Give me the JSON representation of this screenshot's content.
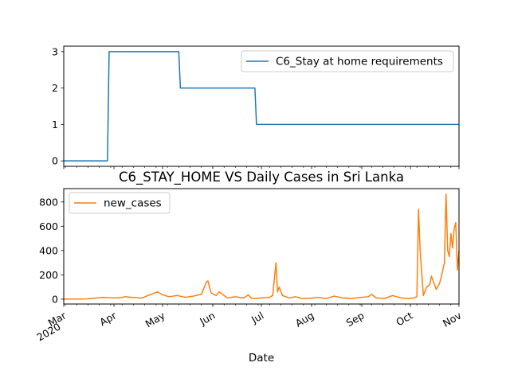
{
  "chart_data": [
    {
      "type": "line",
      "title": "",
      "xlabel": "",
      "ylabel": "",
      "ylim": [
        -0.15,
        3.15
      ],
      "yticks": [
        0,
        1,
        2,
        3
      ],
      "legend_placement": "top-right",
      "series": [
        {
          "name": "C6_Stay at home requirements",
          "color": "#1f77b4",
          "points": [
            [
              "2020-03-01",
              0
            ],
            [
              "2020-03-28",
              0
            ],
            [
              "2020-03-29",
              3
            ],
            [
              "2020-05-11",
              3
            ],
            [
              "2020-05-12",
              2
            ],
            [
              "2020-06-27",
              2
            ],
            [
              "2020-06-28",
              1
            ],
            [
              "2020-10-31",
              1
            ]
          ]
        }
      ]
    },
    {
      "type": "line",
      "title": "C6_STAY_HOME VS Daily Cases in Sri Lanka",
      "xlabel": "Date",
      "ylabel": "",
      "ylim": [
        -40,
        910
      ],
      "yticks": [
        0,
        200,
        400,
        600,
        800
      ],
      "legend_placement": "top-left",
      "x_tick_labels": [
        [
          "Mar",
          "2020"
        ],
        [
          "Apr"
        ],
        [
          "May"
        ],
        [
          "Jun"
        ],
        [
          "Jul"
        ],
        [
          "Aug"
        ],
        [
          "Sep"
        ],
        [
          "Oct"
        ],
        [
          "Nov"
        ]
      ],
      "x_tick_dates": [
        "2020-03-01",
        "2020-04-01",
        "2020-05-01",
        "2020-06-01",
        "2020-07-01",
        "2020-08-01",
        "2020-09-01",
        "2020-10-01",
        "2020-11-01"
      ],
      "series": [
        {
          "name": "new_cases",
          "color": "#ff7f0e",
          "points": [
            [
              "2020-03-01",
              0
            ],
            [
              "2020-03-15",
              2
            ],
            [
              "2020-03-20",
              8
            ],
            [
              "2020-03-25",
              15
            ],
            [
              "2020-03-28",
              12
            ],
            [
              "2020-04-01",
              10
            ],
            [
              "2020-04-05",
              12
            ],
            [
              "2020-04-08",
              20
            ],
            [
              "2020-04-12",
              15
            ],
            [
              "2020-04-18",
              8
            ],
            [
              "2020-04-22",
              30
            ],
            [
              "2020-04-25",
              45
            ],
            [
              "2020-04-28",
              60
            ],
            [
              "2020-05-01",
              35
            ],
            [
              "2020-05-05",
              20
            ],
            [
              "2020-05-10",
              30
            ],
            [
              "2020-05-15",
              15
            ],
            [
              "2020-05-20",
              25
            ],
            [
              "2020-05-25",
              40
            ],
            [
              "2020-05-28",
              140
            ],
            [
              "2020-05-29",
              150
            ],
            [
              "2020-05-31",
              50
            ],
            [
              "2020-06-03",
              30
            ],
            [
              "2020-06-05",
              60
            ],
            [
              "2020-06-10",
              10
            ],
            [
              "2020-06-15",
              20
            ],
            [
              "2020-06-20",
              10
            ],
            [
              "2020-06-23",
              35
            ],
            [
              "2020-06-25",
              5
            ],
            [
              "2020-07-01",
              10
            ],
            [
              "2020-07-06",
              15
            ],
            [
              "2020-07-08",
              30
            ],
            [
              "2020-07-10",
              300
            ],
            [
              "2020-07-11",
              60
            ],
            [
              "2020-07-12",
              100
            ],
            [
              "2020-07-14",
              30
            ],
            [
              "2020-07-18",
              10
            ],
            [
              "2020-07-22",
              20
            ],
            [
              "2020-07-26",
              5
            ],
            [
              "2020-08-01",
              8
            ],
            [
              "2020-08-05",
              15
            ],
            [
              "2020-08-10",
              5
            ],
            [
              "2020-08-15",
              25
            ],
            [
              "2020-08-20",
              10
            ],
            [
              "2020-08-25",
              5
            ],
            [
              "2020-09-01",
              15
            ],
            [
              "2020-09-05",
              20
            ],
            [
              "2020-09-07",
              40
            ],
            [
              "2020-09-10",
              10
            ],
            [
              "2020-09-15",
              5
            ],
            [
              "2020-09-20",
              30
            ],
            [
              "2020-09-25",
              10
            ],
            [
              "2020-09-30",
              5
            ],
            [
              "2020-10-03",
              10
            ],
            [
              "2020-10-05",
              20
            ],
            [
              "2020-10-06",
              740
            ],
            [
              "2020-10-07",
              400
            ],
            [
              "2020-10-09",
              30
            ],
            [
              "2020-10-11",
              100
            ],
            [
              "2020-10-13",
              120
            ],
            [
              "2020-10-14",
              190
            ],
            [
              "2020-10-15",
              150
            ],
            [
              "2020-10-17",
              80
            ],
            [
              "2020-10-19",
              130
            ],
            [
              "2020-10-20",
              180
            ],
            [
              "2020-10-22",
              300
            ],
            [
              "2020-10-23",
              865
            ],
            [
              "2020-10-24",
              400
            ],
            [
              "2020-10-25",
              350
            ],
            [
              "2020-10-26",
              540
            ],
            [
              "2020-10-27",
              420
            ],
            [
              "2020-10-28",
              580
            ],
            [
              "2020-10-29",
              630
            ],
            [
              "2020-10-30",
              240
            ],
            [
              "2020-10-31",
              400
            ]
          ]
        }
      ]
    }
  ]
}
